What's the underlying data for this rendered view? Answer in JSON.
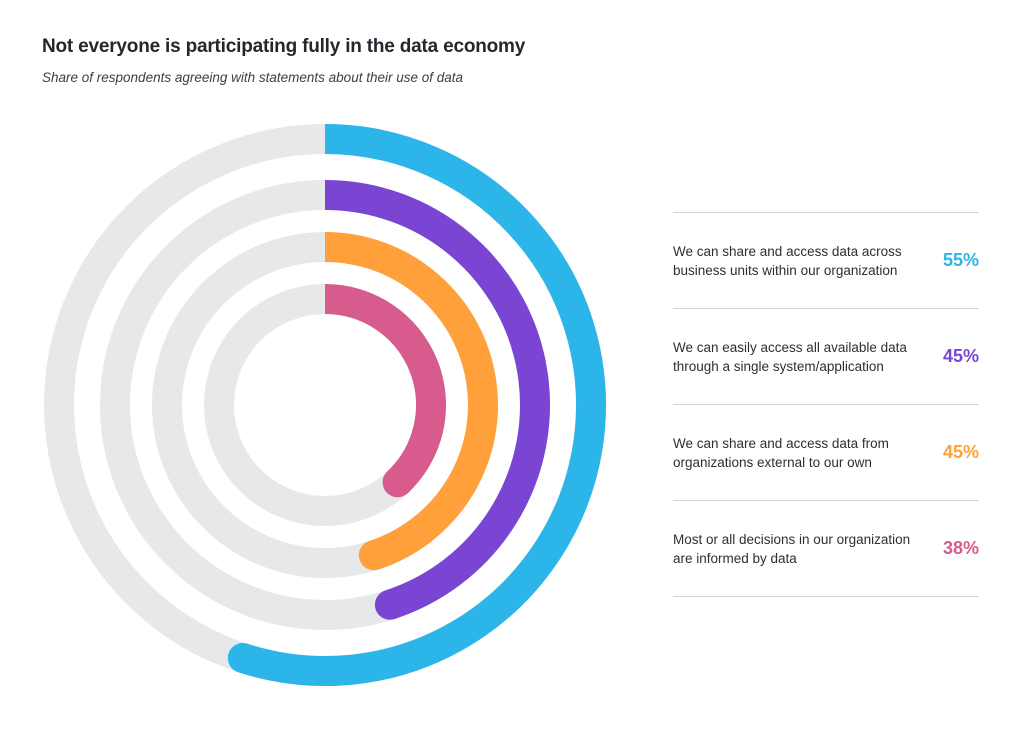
{
  "title": "Not everyone is participating fully in the data economy",
  "subtitle": "Share of respondents agreeing with statements about their use of data",
  "colors": {
    "track": "#e6e8ea",
    "blue": "#2bb5e8",
    "purple": "#7b45d3",
    "orange": "#ffa03a",
    "pink": "#d75b8c"
  },
  "chart_data": {
    "type": "radial-bar",
    "unit": "%",
    "max": 100,
    "series": [
      {
        "label": "We can share and access data across business units within our organization",
        "value": 55,
        "display": "55%",
        "color": "#2bb5e8"
      },
      {
        "label": "We can easily access all available data through a single system/application",
        "value": 45,
        "display": "45%",
        "color": "#7b45d3"
      },
      {
        "label": "We can share and access data from organizations external to our own",
        "value": 45,
        "display": "45%",
        "color": "#ffa03a"
      },
      {
        "label": "Most or all decisions in our organization are informed by data",
        "value": 38,
        "display": "38%",
        "color": "#d75b8c"
      }
    ]
  }
}
